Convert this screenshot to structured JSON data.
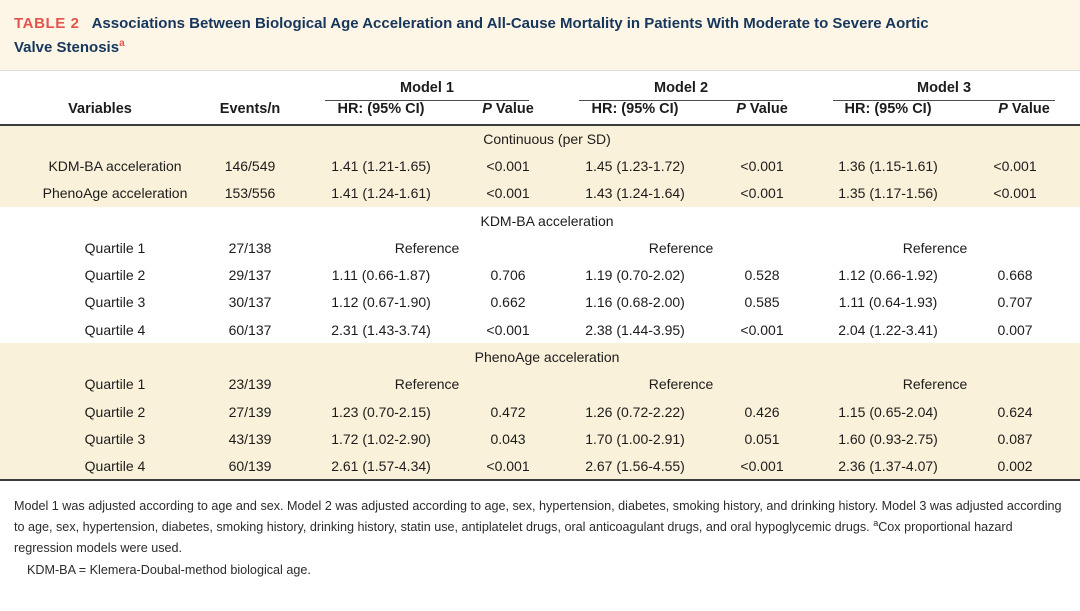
{
  "colors": {
    "cream": "#fdf6e6",
    "shaded_row": "#faf1da",
    "title_navy": "#16365c",
    "accent_red": "#e4544e",
    "body_ink": "#1c1c1c"
  },
  "title": {
    "label": "TABLE 2",
    "line1": "Associations Between Biological Age Acceleration and All-Cause Mortality in Patients With Moderate to Severe Aortic",
    "line2": "Valve Stenosis",
    "superscript": "a",
    "full_text": "Associations Between Biological Age Acceleration and All-Cause Mortality in Patients With Moderate to Severe Aortic Valve Stenosis"
  },
  "table": {
    "header": {
      "variables": "Variables",
      "events": "Events/n",
      "hr_label": "HR: (95% CI)",
      "p_italic": "P",
      "p_rest": "Value",
      "models": [
        {
          "name": "Model 1"
        },
        {
          "name": "Model 2"
        },
        {
          "name": "Model 3"
        }
      ]
    },
    "rows": [
      {
        "type": "section",
        "shaded": true,
        "label": "Continuous (per SD)"
      },
      {
        "type": "data",
        "shaded": true,
        "label": "KDM-BA acceleration",
        "events": "146/549",
        "m1": {
          "hr": "1.41 (1.21-1.65)",
          "p": "<0.001"
        },
        "m2": {
          "hr": "1.45 (1.23-1.72)",
          "p": "<0.001"
        },
        "m3": {
          "hr": "1.36 (1.15-1.61)",
          "p": "<0.001"
        }
      },
      {
        "type": "data",
        "shaded": true,
        "label": "PhenoAge acceleration",
        "events": "153/556",
        "m1": {
          "hr": "1.41 (1.24-1.61)",
          "p": "<0.001"
        },
        "m2": {
          "hr": "1.43 (1.24-1.64)",
          "p": "<0.001"
        },
        "m3": {
          "hr": "1.35 (1.17-1.56)",
          "p": "<0.001"
        }
      },
      {
        "type": "section",
        "shaded": false,
        "label": "KDM-BA acceleration"
      },
      {
        "type": "data",
        "shaded": false,
        "label": "Quartile 1",
        "events": "27/138",
        "m1": {
          "ref": "Reference"
        },
        "m2": {
          "ref": "Reference"
        },
        "m3": {
          "ref": "Reference"
        }
      },
      {
        "type": "data",
        "shaded": false,
        "label": "Quartile 2",
        "events": "29/137",
        "m1": {
          "hr": "1.11 (0.66-1.87)",
          "p": "0.706"
        },
        "m2": {
          "hr": "1.19 (0.70-2.02)",
          "p": "0.528"
        },
        "m3": {
          "hr": "1.12 (0.66-1.92)",
          "p": "0.668"
        }
      },
      {
        "type": "data",
        "shaded": false,
        "label": "Quartile 3",
        "events": "30/137",
        "m1": {
          "hr": "1.12 (0.67-1.90)",
          "p": "0.662"
        },
        "m2": {
          "hr": "1.16 (0.68-2.00)",
          "p": "0.585"
        },
        "m3": {
          "hr": "1.11 (0.64-1.93)",
          "p": "0.707"
        }
      },
      {
        "type": "data",
        "shaded": false,
        "label": "Quartile 4",
        "events": "60/137",
        "m1": {
          "hr": "2.31 (1.43-3.74)",
          "p": "<0.001"
        },
        "m2": {
          "hr": "2.38 (1.44-3.95)",
          "p": "<0.001"
        },
        "m3": {
          "hr": "2.04 (1.22-3.41)",
          "p": "0.007"
        }
      },
      {
        "type": "section",
        "shaded": true,
        "label": "PhenoAge acceleration"
      },
      {
        "type": "data",
        "shaded": true,
        "label": "Quartile 1",
        "events": "23/139",
        "m1": {
          "ref": "Reference"
        },
        "m2": {
          "ref": "Reference"
        },
        "m3": {
          "ref": "Reference"
        }
      },
      {
        "type": "data",
        "shaded": true,
        "label": "Quartile 2",
        "events": "27/139",
        "m1": {
          "hr": "1.23 (0.70-2.15)",
          "p": "0.472"
        },
        "m2": {
          "hr": "1.26 (0.72-2.22)",
          "p": "0.426"
        },
        "m3": {
          "hr": "1.15 (0.65-2.04)",
          "p": "0.624"
        }
      },
      {
        "type": "data",
        "shaded": true,
        "label": "Quartile 3",
        "events": "43/139",
        "m1": {
          "hr": "1.72 (1.02-2.90)",
          "p": "0.043"
        },
        "m2": {
          "hr": "1.70 (1.00-2.91)",
          "p": "0.051"
        },
        "m3": {
          "hr": "1.60 (0.93-2.75)",
          "p": "0.087"
        }
      },
      {
        "type": "data",
        "shaded": true,
        "label": "Quartile 4",
        "events": "60/139",
        "m1": {
          "hr": "2.61 (1.57-4.34)",
          "p": "<0.001"
        },
        "m2": {
          "hr": "2.67 (1.56-4.55)",
          "p": "<0.001"
        },
        "m3": {
          "hr": "2.36 (1.37-4.07)",
          "p": "0.002"
        }
      }
    ]
  },
  "footnotes": {
    "models_note": "Model 1 was adjusted according to age and sex. Model 2 was adjusted according to age, sex, hypertension, diabetes, smoking history, and drinking history. Model 3 was adjusted according to age, sex, hypertension, diabetes, smoking history, drinking history, statin use, antiplatelet drugs, oral anticoagulant drugs, and oral hypoglycemic drugs.",
    "cox_superscript": "a",
    "cox_note": "Cox proportional hazard regression models were used.",
    "abbrev_note": "KDM-BA = Klemera-Doubal-method biological age."
  }
}
